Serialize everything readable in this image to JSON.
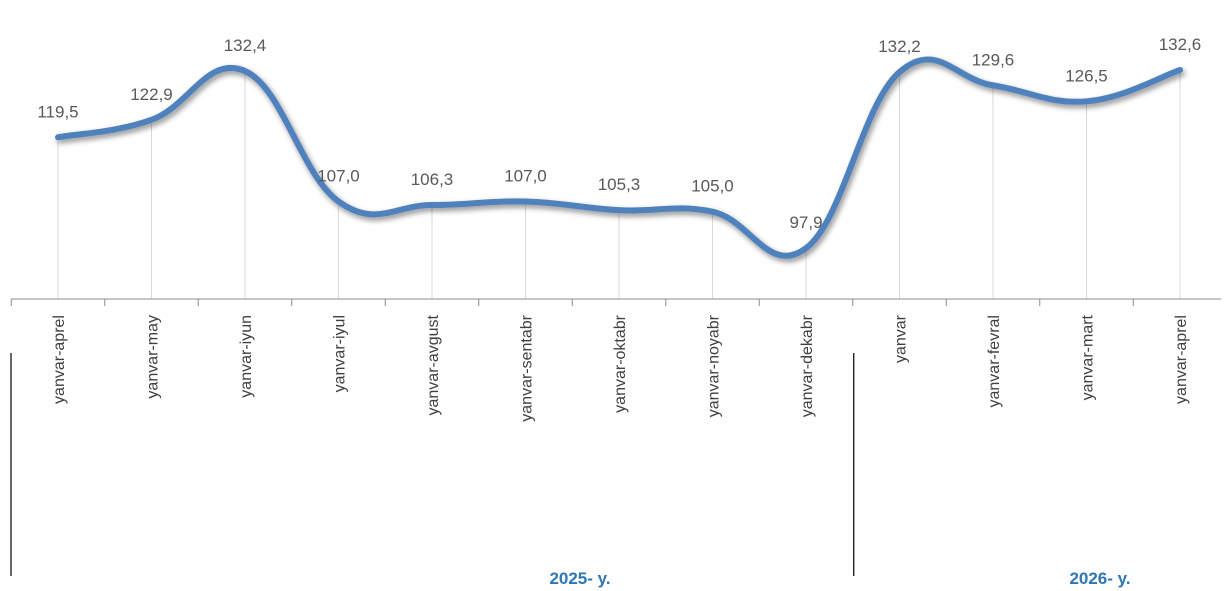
{
  "chart_data": {
    "type": "line",
    "categories": [
      "yanvar-aprel",
      "yanvar-may",
      "yanvar-iyun",
      "yanvar-iyul",
      "yanvar-avgust",
      "yanvar-sentabr",
      "yanvar-oktabr",
      "yanvar-noyabr",
      "yanvar-dekabr",
      "yanvar",
      "yanvar-fevral",
      "yanvar-mart",
      "yanvar-aprel"
    ],
    "series": [
      {
        "values": [
          119.5,
          122.9,
          132.4,
          107.0,
          106.3,
          107.0,
          105.3,
          105.0,
          97.9,
          132.2,
          129.6,
          126.5,
          132.6
        ],
        "labels": [
          "119,5",
          "122,9",
          "132,4",
          "107,0",
          "106,3",
          "107,0",
          "105,3",
          "105,0",
          "97,9",
          "132,2",
          "129,6",
          "126,5",
          "132,6"
        ],
        "color": "#4F81BD"
      }
    ],
    "groups": [
      {
        "label": "2025- y.",
        "start": 0,
        "end": 8
      },
      {
        "label": "2026- y.",
        "start": 9,
        "end": 12
      }
    ],
    "ylim": [
      88,
      140
    ],
    "grid": "vertical-light",
    "smooth": true,
    "legend": "none"
  }
}
